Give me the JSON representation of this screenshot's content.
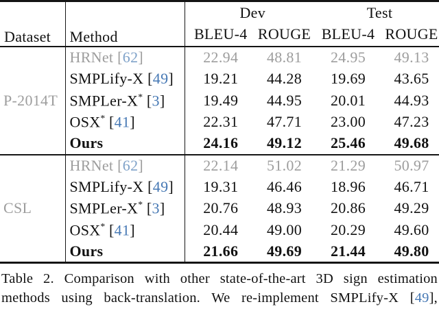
{
  "colors": {
    "citation_blue": "#4678b4",
    "muted_citation_blue": "#7fa2c9",
    "muted_text": "#9d9d9d",
    "rule_black": "#141414",
    "text_black": "#111111"
  },
  "header": {
    "dataset_label": "Dataset",
    "method_label": "Method",
    "span_groups": [
      "Dev",
      "Test"
    ],
    "metric_labels": [
      "BLEU-4",
      "ROUGE",
      "BLEU-4",
      "ROUGE"
    ]
  },
  "groups": [
    {
      "dataset": "P-2014T",
      "rows": [
        {
          "method": "HRNet",
          "sup": "",
          "cite": "62",
          "muted": true,
          "bold": false,
          "values": [
            "22.94",
            "48.81",
            "24.95",
            "49.13"
          ]
        },
        {
          "method": "SMPLify-X",
          "sup": "",
          "cite": "49",
          "muted": false,
          "bold": false,
          "values": [
            "19.21",
            "44.28",
            "19.69",
            "43.65"
          ]
        },
        {
          "method": "SMPLer-X",
          "sup": "*",
          "cite": "3",
          "muted": false,
          "bold": false,
          "values": [
            "19.49",
            "44.95",
            "20.01",
            "44.93"
          ]
        },
        {
          "method": "OSX",
          "sup": "*",
          "cite": "41",
          "muted": false,
          "bold": false,
          "values": [
            "22.31",
            "47.71",
            "23.00",
            "47.23"
          ]
        },
        {
          "method": "Ours",
          "sup": "",
          "cite": "",
          "muted": false,
          "bold": true,
          "values": [
            "24.16",
            "49.12",
            "25.46",
            "49.68"
          ]
        }
      ]
    },
    {
      "dataset": "CSL",
      "rows": [
        {
          "method": "HRNet",
          "sup": "",
          "cite": "62",
          "muted": true,
          "bold": false,
          "values": [
            "22.14",
            "51.02",
            "21.29",
            "50.97"
          ]
        },
        {
          "method": "SMPLify-X",
          "sup": "",
          "cite": "49",
          "muted": false,
          "bold": false,
          "values": [
            "19.31",
            "46.46",
            "18.96",
            "46.71"
          ]
        },
        {
          "method": "SMPLer-X",
          "sup": "*",
          "cite": "3",
          "muted": false,
          "bold": false,
          "values": [
            "20.76",
            "48.93",
            "20.86",
            "49.29"
          ]
        },
        {
          "method": "OSX",
          "sup": "*",
          "cite": "41",
          "muted": false,
          "bold": false,
          "values": [
            "20.44",
            "49.00",
            "20.29",
            "49.60"
          ]
        },
        {
          "method": "Ours",
          "sup": "",
          "cite": "",
          "muted": false,
          "bold": true,
          "values": [
            "21.66",
            "49.69",
            "21.44",
            "49.80"
          ]
        }
      ]
    }
  ],
  "caption": {
    "before": "Table 2. Comparison with other state-of-the-art 3D sign estimation methods using back-translation. We re-implement SMPLify-X [",
    "cite": "49",
    "after": "],"
  }
}
